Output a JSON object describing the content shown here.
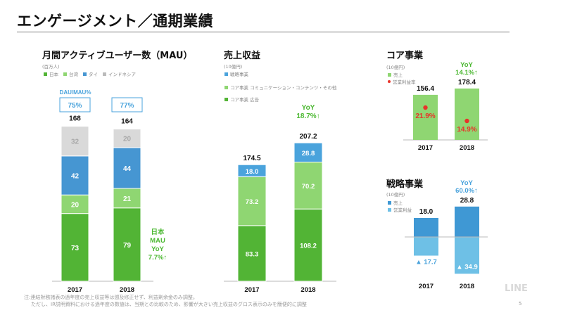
{
  "header": {
    "title": "エンゲージメント／通期業績"
  },
  "footer": {
    "note_line1": "注:連結財務諸表の過年度の売上収益等は遡及修正せず、利益剰余金のみ調整。",
    "note_line2": "ただし、IR説明資料における過年度の数値は、当期との比較のため、影響が大きい売上収益のグロス表示のみを簡便的に調整",
    "logo": "LINE",
    "page_number": "5"
  },
  "colors": {
    "japan": "#52b435",
    "taiwan": "#8fd672",
    "thailand": "#4696d2",
    "indonesia": "#d9d9d9",
    "strategic": "#4aa3dc",
    "core_comm": "#8fd672",
    "core_ad": "#52b435",
    "core_sales": "#8fd672",
    "op_margin": "#e8342a",
    "strat_sales": "#3f98d4",
    "strat_op": "#6ec0e6",
    "yoy_green": "#4cb832",
    "yoy_blue": "#4aa3dc"
  },
  "chart_data": [
    {
      "id": "mau",
      "type": "bar",
      "stacked": true,
      "title": "月間アクティブユーザー数（MAU）",
      "unit": "(百万人)",
      "categories": [
        "2017",
        "2018"
      ],
      "series": [
        {
          "name": "日本",
          "color_key": "japan",
          "values": [
            73,
            79
          ],
          "label_color": "#ffffff"
        },
        {
          "name": "台湾",
          "color_key": "taiwan",
          "values": [
            20,
            21
          ],
          "label_color": "#ffffff"
        },
        {
          "name": "タイ",
          "color_key": "thailand",
          "values": [
            42,
            44
          ],
          "label_color": "#ffffff"
        },
        {
          "name": "インドネシア",
          "color_key": "indonesia",
          "values": [
            32,
            20
          ],
          "label_color": "#a8a8a8"
        }
      ],
      "totals": [
        "168",
        "164"
      ],
      "dau_mau": {
        "label": "DAU/MAU%",
        "values": [
          "75%",
          "77%"
        ]
      },
      "annotation": [
        "日本",
        "MAU",
        "YoY",
        "7.7%↑"
      ],
      "ylim": [
        0,
        180
      ]
    },
    {
      "id": "revenue",
      "type": "bar",
      "stacked": true,
      "title": "売上収益",
      "unit": "(10億円)",
      "categories": [
        "2017",
        "2018"
      ],
      "series": [
        {
          "name": "コア事業 広告",
          "color_key": "core_ad",
          "values": [
            83.3,
            108.2
          ]
        },
        {
          "name": "コア事業 コミュニケーション・コンテンツ・その他",
          "color_key": "core_comm",
          "values": [
            73.2,
            70.2
          ]
        },
        {
          "name": "戦略事業",
          "color_key": "strategic",
          "values": [
            18.0,
            28.8
          ]
        }
      ],
      "legend_order": [
        "戦略事業",
        "コア事業 コミュニケーション・コンテンツ・その他",
        "コア事業 広告"
      ],
      "totals": [
        "174.5",
        "207.2"
      ],
      "yoy": [
        "YoY",
        "18.7%↑"
      ],
      "ylim": [
        0,
        220
      ]
    },
    {
      "id": "core",
      "type": "bar",
      "title": "コア事業",
      "unit": "(10億円)",
      "categories": [
        "2017",
        "2018"
      ],
      "legend": [
        {
          "name": "売上",
          "kind": "square"
        },
        {
          "name": "営業利益率",
          "kind": "dot"
        }
      ],
      "series": [
        {
          "name": "売上",
          "values": [
            156.4,
            178.4
          ]
        },
        {
          "name": "営業利益率",
          "values": [
            21.9,
            14.9
          ],
          "unit": "%"
        }
      ],
      "totals": [
        "156.4",
        "178.4"
      ],
      "margin_labels": [
        "21.9%",
        "14.9%"
      ],
      "yoy": [
        "YoY",
        "14.1%↑"
      ],
      "ylim": [
        0,
        200
      ]
    },
    {
      "id": "strategic",
      "type": "bar",
      "title": "戦略事業",
      "unit": "(10億円)",
      "categories": [
        "2017",
        "2018"
      ],
      "legend": [
        {
          "name": "売上",
          "kind": "square"
        },
        {
          "name": "営業利益",
          "kind": "square"
        }
      ],
      "series": [
        {
          "name": "売上",
          "values": [
            18.0,
            28.8
          ]
        },
        {
          "name": "営業利益",
          "values": [
            -17.7,
            -34.9
          ]
        }
      ],
      "sales_labels": [
        "18.0",
        "28.8"
      ],
      "op_labels": [
        "▲ 17.7",
        "▲ 34.9"
      ],
      "yoy": [
        "YoY",
        "60.0%↑"
      ],
      "ylim": [
        -35,
        30
      ]
    }
  ]
}
